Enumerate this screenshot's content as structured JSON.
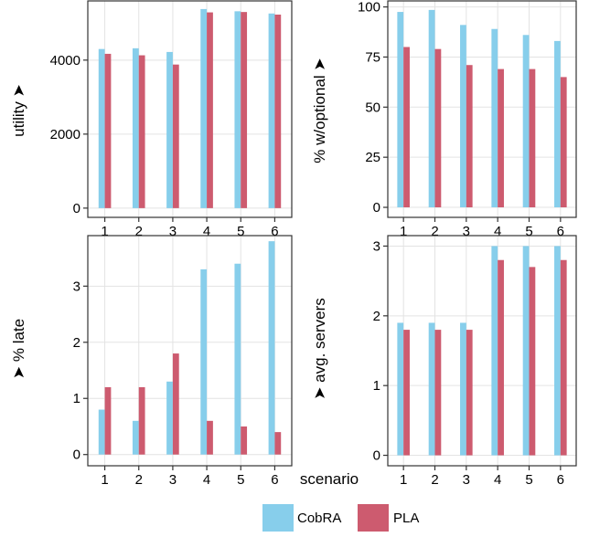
{
  "colors": {
    "CobRA": "#87ceeb",
    "PLA": "#cd5b6f",
    "grid": "#e3e3e3",
    "frame": "#333333"
  },
  "legend": {
    "items": [
      "CobRA",
      "PLA"
    ],
    "position": "bottom-center"
  },
  "chart_data": [
    {
      "type": "bar",
      "ylabel": "utility ➤",
      "xlabel": "",
      "categories": [
        "1",
        "2",
        "3",
        "4",
        "5",
        "6"
      ],
      "yticks": [
        "0",
        "2000",
        "4000"
      ],
      "ylim": [
        -250,
        5600
      ],
      "grid": true,
      "series": [
        {
          "name": "CobRA",
          "values": [
            4300,
            4320,
            4220,
            5380,
            5320,
            5260
          ]
        },
        {
          "name": "PLA",
          "values": [
            4170,
            4130,
            3880,
            5290,
            5300,
            5230
          ]
        }
      ]
    },
    {
      "type": "bar",
      "ylabel": "% w/optional ➤",
      "xlabel": "",
      "categories": [
        "1",
        "2",
        "3",
        "4",
        "5",
        "6"
      ],
      "yticks": [
        "0",
        "25",
        "50",
        "75",
        "100"
      ],
      "ylim": [
        -5,
        103
      ],
      "grid": true,
      "series": [
        {
          "name": "CobRA",
          "values": [
            97.5,
            98.5,
            91,
            89,
            86,
            83
          ]
        },
        {
          "name": "PLA",
          "values": [
            80,
            79,
            71,
            69,
            69,
            65
          ]
        }
      ]
    },
    {
      "type": "bar",
      "ylabel": "➤ % late",
      "xlabel": "scenario",
      "categories": [
        "1",
        "2",
        "3",
        "4",
        "5",
        "6"
      ],
      "yticks": [
        "0",
        "1",
        "2",
        "3"
      ],
      "ylim": [
        -0.2,
        3.9
      ],
      "grid": true,
      "series": [
        {
          "name": "CobRA",
          "values": [
            0.8,
            0.6,
            1.3,
            3.3,
            3.4,
            3.8
          ]
        },
        {
          "name": "PLA",
          "values": [
            1.2,
            1.2,
            1.8,
            0.6,
            0.5,
            0.4
          ]
        }
      ]
    },
    {
      "type": "bar",
      "ylabel": "➤ avg. servers",
      "xlabel": "",
      "categories": [
        "1",
        "2",
        "3",
        "4",
        "5",
        "6"
      ],
      "yticks": [
        "0",
        "1",
        "2",
        "3"
      ],
      "ylim": [
        -0.15,
        3.15
      ],
      "grid": true,
      "series": [
        {
          "name": "CobRA",
          "values": [
            1.9,
            1.9,
            1.9,
            3.0,
            3.0,
            3.0
          ]
        },
        {
          "name": "PLA",
          "values": [
            1.8,
            1.8,
            1.8,
            2.8,
            2.7,
            2.8
          ]
        }
      ]
    }
  ]
}
